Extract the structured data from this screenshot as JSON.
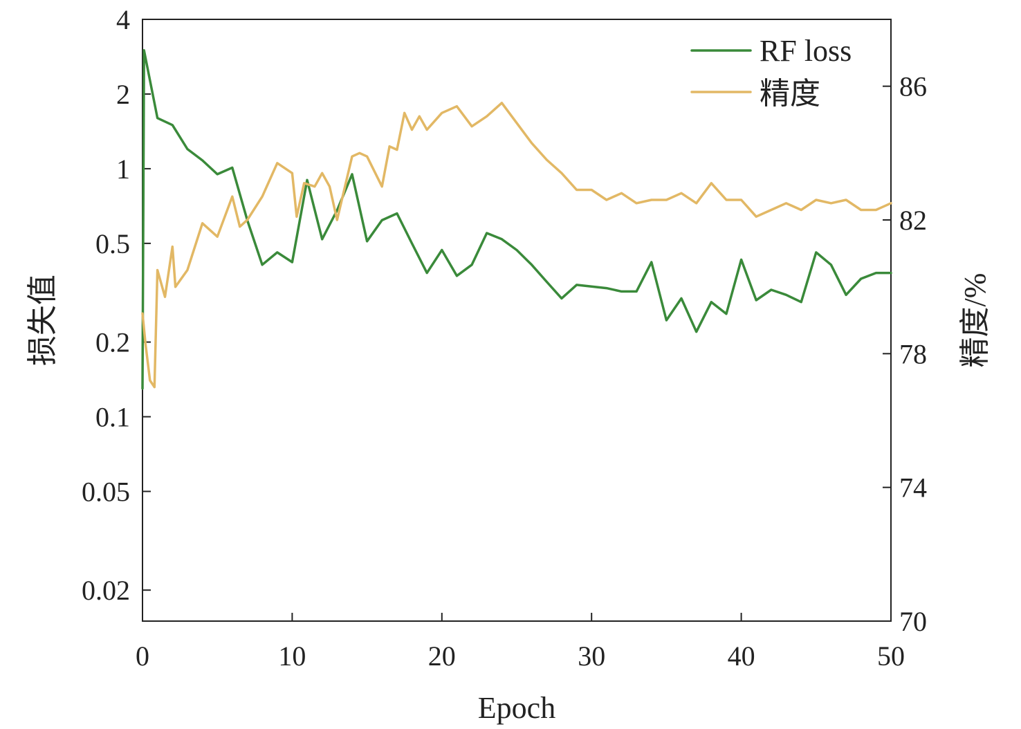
{
  "chart_data": {
    "type": "line",
    "xlabel": "Epoch",
    "ylabel_left": "损失值",
    "ylabel_right": "精度/%",
    "x_range": [
      0,
      50
    ],
    "x_ticks": [
      0,
      10,
      20,
      30,
      40,
      50
    ],
    "left_axis": {
      "scale": "log",
      "range": [
        0.015,
        4
      ],
      "ticks": [
        4,
        2,
        1,
        0.5,
        0.2,
        0.1,
        0.05,
        0.02
      ],
      "tick_labels": [
        "4",
        "2",
        "1",
        "0.5",
        "0.2",
        "0.1",
        "0.05",
        "0.02"
      ]
    },
    "right_axis": {
      "scale": "linear",
      "range": [
        70,
        88
      ],
      "ticks": [
        86,
        82,
        78,
        74,
        70
      ],
      "tick_labels": [
        "86",
        "82",
        "78",
        "74",
        "70"
      ]
    },
    "legend": {
      "position": "top-right",
      "entries": [
        "RF loss",
        "精度"
      ]
    },
    "series": [
      {
        "name": "RF loss",
        "axis": "left",
        "color": "#3a8a3a",
        "x": [
          0,
          0.1,
          1,
          2,
          3,
          4,
          5,
          6,
          7,
          8,
          9,
          10,
          11,
          12,
          13,
          14,
          15,
          16,
          17,
          18,
          19,
          20,
          21,
          22,
          23,
          24,
          25,
          26,
          27,
          28,
          29,
          30,
          31,
          32,
          33,
          34,
          35,
          36,
          37,
          38,
          39,
          40,
          41,
          42,
          43,
          44,
          45,
          46,
          47,
          48,
          49,
          50
        ],
        "y": [
          0.13,
          3.0,
          1.6,
          1.5,
          1.2,
          1.08,
          0.95,
          1.01,
          0.62,
          0.41,
          0.46,
          0.42,
          0.9,
          0.52,
          0.68,
          0.95,
          0.51,
          0.62,
          0.66,
          0.5,
          0.38,
          0.47,
          0.37,
          0.41,
          0.55,
          0.52,
          0.47,
          0.41,
          0.35,
          0.3,
          0.34,
          0.335,
          0.33,
          0.32,
          0.32,
          0.42,
          0.245,
          0.3,
          0.22,
          0.29,
          0.26,
          0.43,
          0.295,
          0.325,
          0.31,
          0.29,
          0.46,
          0.41,
          0.31,
          0.36,
          0.38,
          0.38
        ]
      },
      {
        "name": "精度",
        "axis": "right",
        "color": "#e2b865",
        "x": [
          0,
          0.2,
          0.5,
          0.8,
          1,
          1.5,
          2,
          2.2,
          3,
          4,
          5,
          6,
          6.5,
          7,
          8,
          9,
          10,
          10.3,
          10.8,
          11.5,
          12,
          12.5,
          13,
          14,
          14.5,
          15,
          16,
          16.5,
          17,
          17.5,
          18,
          18.5,
          19,
          20,
          21,
          22,
          23,
          24,
          25,
          26,
          27,
          28,
          29,
          30,
          31,
          32,
          33,
          34,
          35,
          36,
          37,
          38,
          39,
          40,
          41,
          42,
          43,
          44,
          45,
          46,
          47,
          48,
          49,
          50
        ],
        "y": [
          79.2,
          78.3,
          77.2,
          77.0,
          80.5,
          79.7,
          81.2,
          80.0,
          80.5,
          81.9,
          81.5,
          82.7,
          81.8,
          82.0,
          82.7,
          83.7,
          83.4,
          82.1,
          83.1,
          83.0,
          83.4,
          83.0,
          82.0,
          83.9,
          84.0,
          83.9,
          83.0,
          84.2,
          84.1,
          85.2,
          84.7,
          85.1,
          84.7,
          85.2,
          85.4,
          84.8,
          85.1,
          85.5,
          84.9,
          84.3,
          83.8,
          83.4,
          82.9,
          82.9,
          82.6,
          82.8,
          82.5,
          82.6,
          82.6,
          82.8,
          82.5,
          83.1,
          82.6,
          82.6,
          82.1,
          82.3,
          82.5,
          82.3,
          82.6,
          82.5,
          82.6,
          82.3,
          82.3,
          82.5
        ]
      }
    ]
  }
}
